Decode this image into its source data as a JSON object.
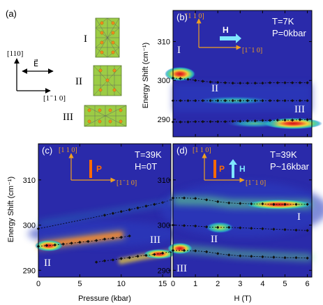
{
  "colors": {
    "cmap": [
      "#2b23a3",
      "#2a35c9",
      "#2a66cf",
      "#27b5c7",
      "#5fd28c",
      "#d9e84a",
      "#f1d13b",
      "#ee4c2a",
      "#d21212"
    ],
    "orange_axis": "#f0a020",
    "pressure_arrow": "#ff6a00",
    "field_arrow": "#7fe6ff",
    "dashed_line": "#000000",
    "marker": "#111111"
  },
  "panel_a": {
    "label": "(a)",
    "axis_up": "[110]",
    "axis_right": "[1 ̄ 1 0]",
    "evec": "E⃗",
    "structures": [
      {
        "label": "I"
      },
      {
        "label": "II"
      },
      {
        "label": "III"
      }
    ]
  },
  "chart_data": [
    {
      "id": "b",
      "type": "heatmap",
      "label": "(b)",
      "xlabel": "",
      "ylabel": "Energy Shift (cm⁻¹)",
      "xlim": [
        0,
        6.2
      ],
      "ylim": [
        285.5,
        318
      ],
      "xticks": [
        0,
        1,
        2,
        3,
        4,
        5,
        6
      ],
      "yticks": [
        290,
        300,
        310
      ],
      "ann": [
        "T=7K",
        "P=0kbar"
      ],
      "axis_up": "[1 1 0]",
      "axis_right": "[1 ̄ 1 0]",
      "arrow_label": "H",
      "mode_labels": [
        "I",
        "II",
        "III"
      ],
      "series": [
        {
          "x": [
            0.0,
            0.33,
            0.67,
            1.0,
            1.33,
            1.67,
            2.0,
            2.33,
            2.67,
            3.0,
            3.33,
            3.67,
            4.0,
            4.33,
            4.67,
            5.0,
            5.33,
            5.67,
            6.0
          ],
          "values": [
            300.6,
            300.5,
            300.3,
            300.0,
            299.8,
            299.6,
            299.5,
            299.4,
            299.3,
            299.3,
            299.3,
            299.3,
            299.3,
            299.4,
            299.4,
            299.4,
            299.4,
            299.4,
            299.4
          ]
        },
        {
          "x": [
            0.0,
            0.33,
            0.67,
            1.0,
            1.33,
            1.67,
            2.0,
            2.33,
            2.67,
            3.0,
            3.33,
            3.67,
            4.0,
            4.33,
            4.67,
            5.0,
            5.33,
            5.67,
            6.0
          ],
          "values": [
            294.8,
            294.8,
            294.8,
            294.8,
            294.8,
            294.8,
            294.8,
            294.8,
            294.8,
            294.8,
            294.8,
            294.8,
            294.8,
            294.8,
            294.8,
            294.8,
            294.8,
            294.8,
            294.8
          ]
        },
        {
          "x": [
            0.0,
            0.33,
            0.67,
            1.0,
            1.33,
            1.67,
            2.0,
            2.33,
            2.67,
            3.0,
            3.33,
            3.67,
            4.0,
            4.33,
            4.67,
            5.0,
            5.33,
            5.67,
            6.0
          ],
          "values": [
            289.3,
            289.3,
            289.3,
            289.4,
            289.4,
            289.4,
            289.4,
            289.4,
            289.5,
            289.5,
            289.6,
            289.6,
            289.7,
            289.7,
            289.8,
            289.8,
            289.8,
            289.9,
            289.9
          ]
        }
      ]
    },
    {
      "id": "c",
      "type": "heatmap",
      "label": "(c)",
      "xlabel": "Pressure (kbar)",
      "ylabel": "Energy Shift (cm⁻¹)",
      "xlim": [
        0,
        16
      ],
      "ylim": [
        288.5,
        318
      ],
      "xticks": [
        0,
        5,
        10,
        15
      ],
      "yticks": [
        290,
        300,
        310
      ],
      "ann": [
        "T=39K",
        "H=0T"
      ],
      "axis_up": "[1 1 0]",
      "axis_right": "[1 ̄ 1 0]",
      "arrow_label": "P",
      "mode_labels": [
        "II",
        "III"
      ],
      "series": [
        {
          "x": [
            0,
            8,
            9,
            10,
            11,
            12,
            13,
            14,
            15,
            16
          ],
          "values": [
            299.2,
            302.2,
            302.6,
            303.0,
            303.4,
            303.8,
            304.2,
            304.6,
            305.0,
            305.6
          ]
        },
        {
          "x": [
            0,
            1,
            2,
            3,
            4,
            5,
            6,
            7,
            8,
            9,
            10,
            11
          ],
          "values": [
            295.3,
            295.5,
            295.6,
            295.8,
            296.0,
            296.2,
            296.4,
            296.6,
            296.9,
            297.1,
            297.3,
            297.6
          ]
        },
        {
          "x": [
            7,
            8,
            9,
            10,
            11,
            12,
            13,
            14,
            15,
            16
          ],
          "values": [
            291.8,
            292.1,
            292.3,
            292.6,
            292.8,
            293.1,
            293.3,
            293.5,
            293.8,
            294.1
          ]
        }
      ]
    },
    {
      "id": "d",
      "type": "heatmap",
      "label": "(d)",
      "xlabel": "H (T)",
      "ylabel": "",
      "xlim": [
        0,
        6.2
      ],
      "ylim": [
        288.5,
        318
      ],
      "xticks": [
        0,
        1,
        2,
        3,
        4,
        5,
        6
      ],
      "yticks": [
        290,
        300,
        310
      ],
      "ann": [
        "T=39K",
        "P~16kbar"
      ],
      "axis_up": "[1 1 0]",
      "axis_right": "[1 ̄ 1 0]",
      "arrow_label_p": "P",
      "arrow_label_h": "H",
      "mode_labels": [
        "I",
        "II",
        "III"
      ],
      "series": [
        {
          "x": [
            0.0,
            0.5,
            1.0,
            1.5,
            2.0,
            2.5,
            3.0,
            3.5,
            4.0,
            4.5,
            5.0,
            5.5,
            6.0
          ],
          "values": [
            306.0,
            306.0,
            305.9,
            305.6,
            305.2,
            304.9,
            304.8,
            304.7,
            304.7,
            304.6,
            304.6,
            304.6,
            304.6
          ]
        },
        {
          "x": [
            0.0,
            0.5,
            1.0,
            1.5,
            2.0,
            2.5,
            3.0,
            3.5,
            4.0,
            4.5,
            5.0,
            5.5,
            6.0
          ],
          "values": [
            300.0,
            299.9,
            299.8,
            299.6,
            299.5,
            299.5,
            299.4,
            299.3,
            299.2,
            299.1,
            299.0,
            298.9,
            298.8
          ]
        },
        {
          "x": [
            0.0,
            0.5,
            1.0,
            1.5,
            2.0,
            2.5,
            3.0,
            3.5,
            4.0,
            4.5,
            5.0,
            5.5,
            6.0
          ],
          "values": [
            294.4,
            294.4,
            294.3,
            294.1,
            293.7,
            293.4,
            293.2,
            293.1,
            293.0,
            292.9,
            292.8,
            292.8,
            292.7
          ]
        }
      ]
    }
  ]
}
